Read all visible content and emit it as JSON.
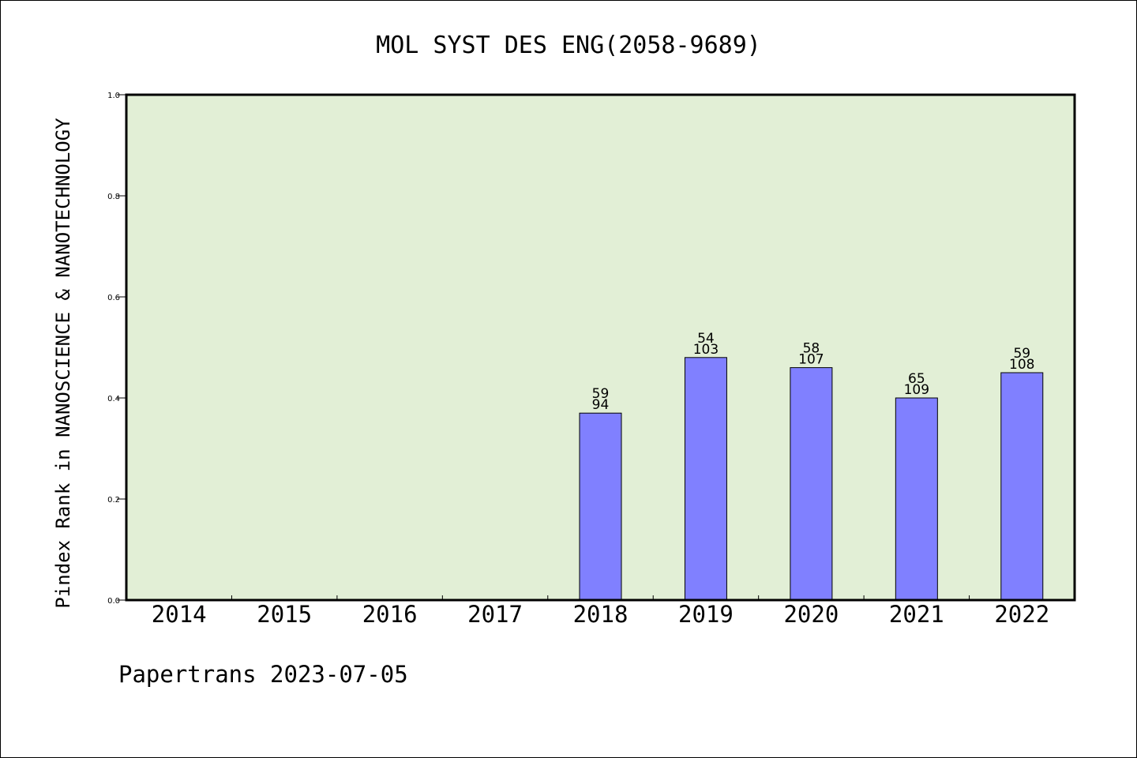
{
  "chart_data": {
    "type": "bar",
    "title": "MOL SYST DES ENG(2058-9689)",
    "ylabel": "Pindex Rank in NANOSCIENCE & NANOTECHNOLOGY",
    "xlabel": "",
    "categories": [
      "2014",
      "2015",
      "2016",
      "2017",
      "2018",
      "2019",
      "2020",
      "2021",
      "2022"
    ],
    "values": [
      null,
      null,
      null,
      null,
      0.37,
      0.48,
      0.46,
      0.4,
      0.45
    ],
    "data_labels": {
      "rank": [
        null,
        null,
        null,
        null,
        "59",
        "54",
        "58",
        "65",
        "59"
      ],
      "total": [
        null,
        null,
        null,
        null,
        "94",
        "103",
        "107",
        "109",
        "108"
      ]
    },
    "ylim": [
      0.0,
      1.0
    ],
    "yticks": [
      "0.0",
      "0.2",
      "0.4",
      "0.6",
      "0.8",
      "1.0"
    ],
    "grid": false,
    "colors": {
      "plot_background": "#e2efd6",
      "bar_fill": "#8080ff",
      "bar_edge": "#000000"
    }
  },
  "footer": {
    "text": "Papertrans 2023-07-05"
  }
}
